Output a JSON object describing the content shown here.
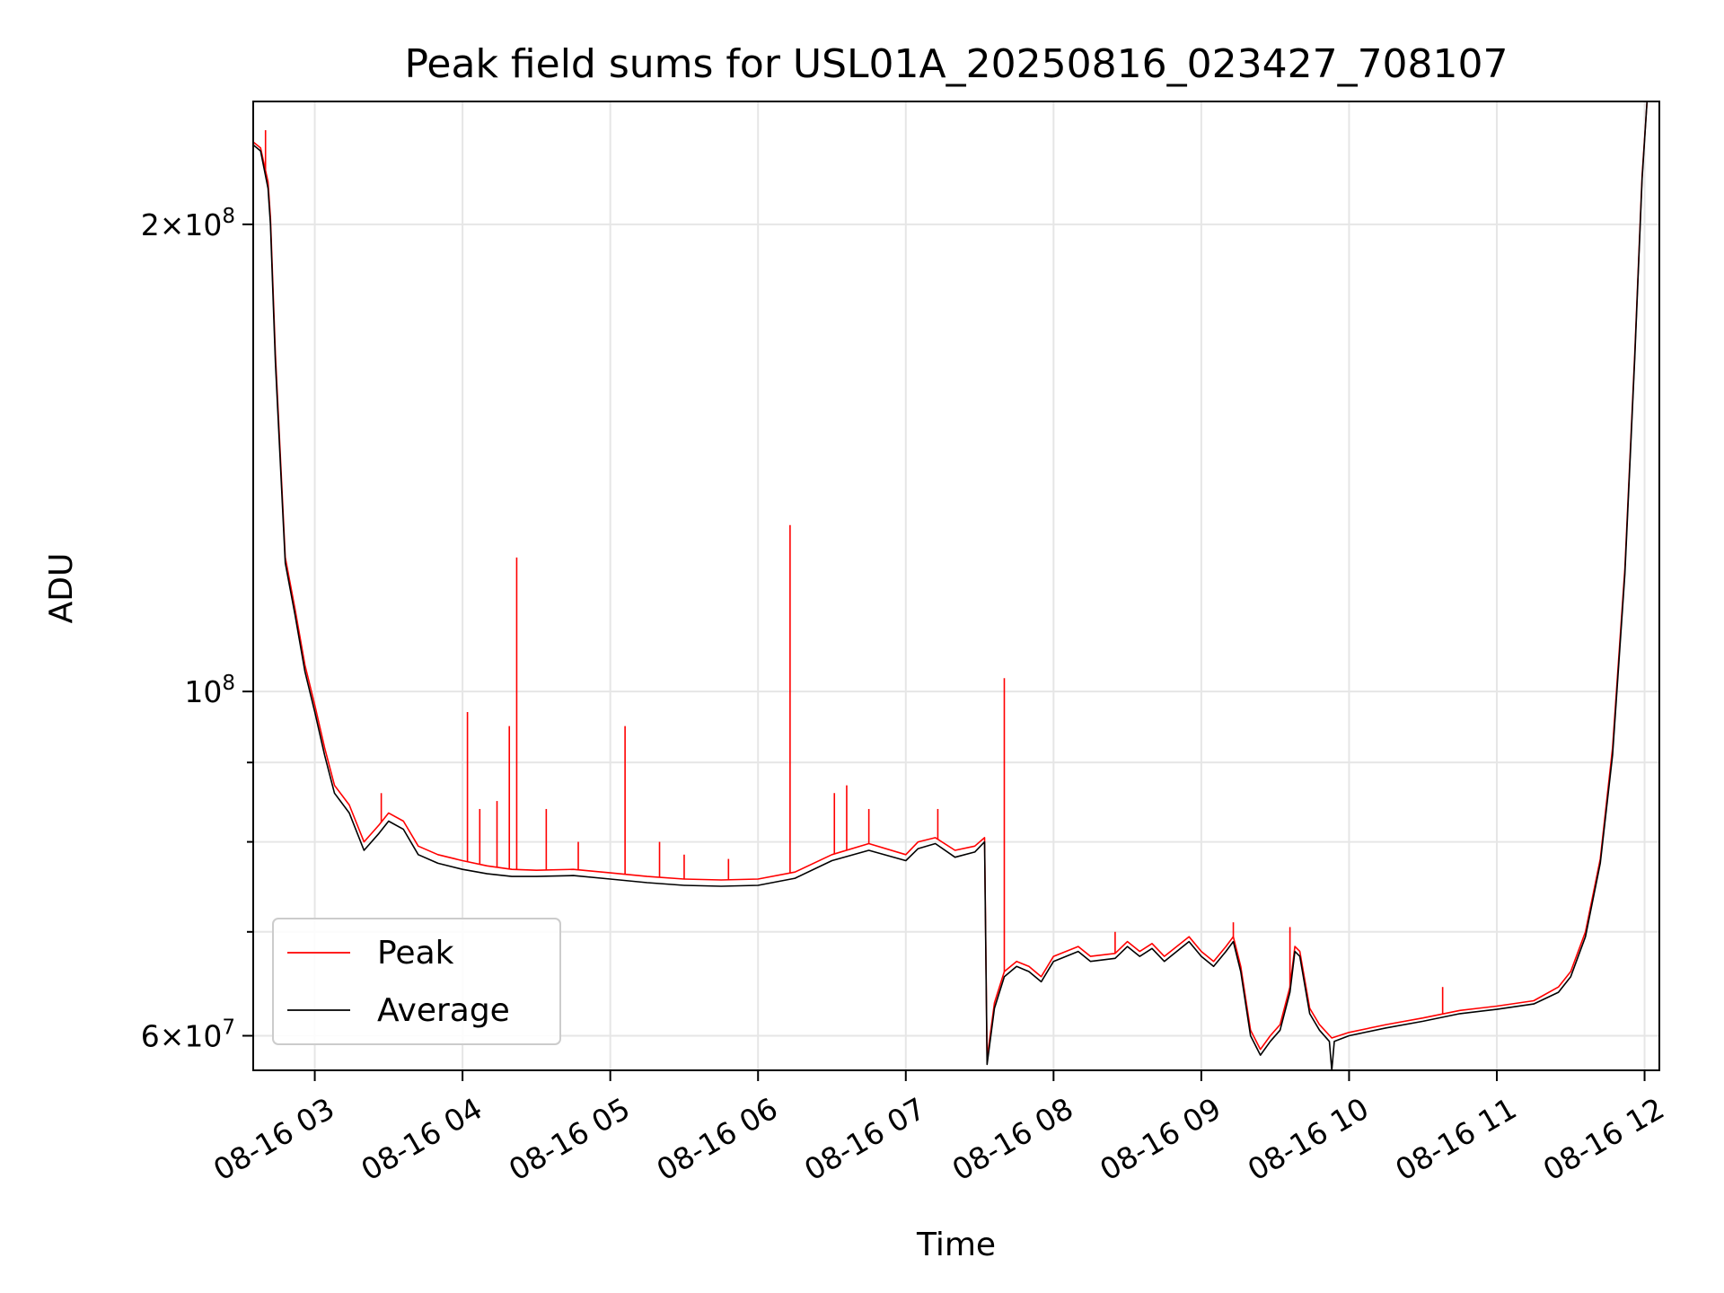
{
  "chart_data": {
    "type": "line",
    "title": "Peak field sums for USL01A_20250816_023427_708107",
    "xlabel": "Time",
    "ylabel": "ADU",
    "yscale": "log",
    "grid": true,
    "legend_position": "lower-left",
    "xlim": [
      "2025-08-16 02:35",
      "2025-08-16 12:06"
    ],
    "ylim": [
      57000000,
      240000000
    ],
    "x_ticks": [
      {
        "value": "2025-08-16 03:00",
        "label": "08-16 03"
      },
      {
        "value": "2025-08-16 04:00",
        "label": "08-16 04"
      },
      {
        "value": "2025-08-16 05:00",
        "label": "08-16 05"
      },
      {
        "value": "2025-08-16 06:00",
        "label": "08-16 06"
      },
      {
        "value": "2025-08-16 07:00",
        "label": "08-16 07"
      },
      {
        "value": "2025-08-16 08:00",
        "label": "08-16 08"
      },
      {
        "value": "2025-08-16 09:00",
        "label": "08-16 09"
      },
      {
        "value": "2025-08-16 10:00",
        "label": "08-16 10"
      },
      {
        "value": "2025-08-16 11:00",
        "label": "08-16 11"
      },
      {
        "value": "2025-08-16 12:00",
        "label": "08-16 12"
      }
    ],
    "y_major_ticks": [
      {
        "value": 60000000,
        "mantissa": "6",
        "exponent": "7"
      },
      {
        "value": 100000000,
        "mantissa": "",
        "exponent": "8"
      },
      {
        "value": 200000000,
        "mantissa": "2",
        "exponent": "8"
      }
    ],
    "y_minor_ticks": [
      70000000,
      80000000,
      90000000
    ],
    "series": [
      {
        "name": "Peak",
        "color": "#ff0000",
        "points": [
          [
            "2025-08-16 02:35",
            226000000
          ],
          [
            "2025-08-16 02:38",
            224000000
          ],
          [
            "2025-08-16 02:41",
            213000000
          ],
          [
            "2025-08-16 02:42",
            202000000
          ],
          [
            "2025-08-16 02:44",
            165000000
          ],
          [
            "2025-08-16 02:48",
            122000000
          ],
          [
            "2025-08-16 02:52",
            113000000
          ],
          [
            "2025-08-16 02:56",
            104000000
          ],
          [
            "2025-08-16 03:00",
            98000000
          ],
          [
            "2025-08-16 03:04",
            92000000
          ],
          [
            "2025-08-16 03:08",
            87000000
          ],
          [
            "2025-08-16 03:14",
            84500000
          ],
          [
            "2025-08-16 03:20",
            80000000
          ],
          [
            "2025-08-16 03:26",
            82000000
          ],
          [
            "2025-08-16 03:30",
            83500000
          ],
          [
            "2025-08-16 03:36",
            82500000
          ],
          [
            "2025-08-16 03:42",
            79500000
          ],
          [
            "2025-08-16 03:50",
            78500000
          ],
          [
            "2025-08-16 04:00",
            77800000
          ],
          [
            "2025-08-16 04:10",
            77200000
          ],
          [
            "2025-08-16 04:20",
            76800000
          ],
          [
            "2025-08-16 04:30",
            76700000
          ],
          [
            "2025-08-16 04:45",
            76800000
          ],
          [
            "2025-08-16 05:00",
            76400000
          ],
          [
            "2025-08-16 05:15",
            76000000
          ],
          [
            "2025-08-16 05:30",
            75700000
          ],
          [
            "2025-08-16 05:45",
            75600000
          ],
          [
            "2025-08-16 06:00",
            75700000
          ],
          [
            "2025-08-16 06:15",
            76500000
          ],
          [
            "2025-08-16 06:30",
            78500000
          ],
          [
            "2025-08-16 06:45",
            79800000
          ],
          [
            "2025-08-16 07:00",
            78500000
          ],
          [
            "2025-08-16 07:05",
            80000000
          ],
          [
            "2025-08-16 07:12",
            80500000
          ],
          [
            "2025-08-16 07:20",
            79000000
          ],
          [
            "2025-08-16 07:28",
            79500000
          ],
          [
            "2025-08-16 07:32",
            80500000
          ],
          [
            "2025-08-16 07:33",
            58000000
          ],
          [
            "2025-08-16 07:36",
            63000000
          ],
          [
            "2025-08-16 07:40",
            66000000
          ],
          [
            "2025-08-16 07:45",
            67000000
          ],
          [
            "2025-08-16 07:50",
            66500000
          ],
          [
            "2025-08-16 07:55",
            65500000
          ],
          [
            "2025-08-16 08:00",
            67500000
          ],
          [
            "2025-08-16 08:10",
            68500000
          ],
          [
            "2025-08-16 08:15",
            67500000
          ],
          [
            "2025-08-16 08:25",
            67800000
          ],
          [
            "2025-08-16 08:30",
            69000000
          ],
          [
            "2025-08-16 08:35",
            68000000
          ],
          [
            "2025-08-16 08:40",
            68800000
          ],
          [
            "2025-08-16 08:45",
            67500000
          ],
          [
            "2025-08-16 08:50",
            68500000
          ],
          [
            "2025-08-16 08:55",
            69500000
          ],
          [
            "2025-08-16 09:00",
            68000000
          ],
          [
            "2025-08-16 09:05",
            67000000
          ],
          [
            "2025-08-16 09:10",
            68500000
          ],
          [
            "2025-08-16 09:13",
            69500000
          ],
          [
            "2025-08-16 09:16",
            66500000
          ],
          [
            "2025-08-16 09:20",
            60500000
          ],
          [
            "2025-08-16 09:24",
            58800000
          ],
          [
            "2025-08-16 09:28",
            60000000
          ],
          [
            "2025-08-16 09:32",
            61000000
          ],
          [
            "2025-08-16 09:36",
            64500000
          ],
          [
            "2025-08-16 09:38",
            68500000
          ],
          [
            "2025-08-16 09:40",
            68000000
          ],
          [
            "2025-08-16 09:44",
            62500000
          ],
          [
            "2025-08-16 09:48",
            61000000
          ],
          [
            "2025-08-16 09:53",
            59800000
          ],
          [
            "2025-08-16 10:00",
            60300000
          ],
          [
            "2025-08-16 10:15",
            61000000
          ],
          [
            "2025-08-16 10:30",
            61600000
          ],
          [
            "2025-08-16 10:45",
            62300000
          ],
          [
            "2025-08-16 11:00",
            62700000
          ],
          [
            "2025-08-16 11:15",
            63200000
          ],
          [
            "2025-08-16 11:25",
            64500000
          ],
          [
            "2025-08-16 11:30",
            66000000
          ],
          [
            "2025-08-16 11:36",
            70000000
          ],
          [
            "2025-08-16 11:42",
            78000000
          ],
          [
            "2025-08-16 11:47",
            92000000
          ],
          [
            "2025-08-16 11:52",
            120000000
          ],
          [
            "2025-08-16 11:56",
            165000000
          ],
          [
            "2025-08-16 11:59",
            215000000
          ],
          [
            "2025-08-16 12:01",
            240000000
          ]
        ],
        "spikes": [
          [
            "2025-08-16 02:40",
            230000000
          ],
          [
            "2025-08-16 03:27",
            86000000
          ],
          [
            "2025-08-16 04:02",
            97000000
          ],
          [
            "2025-08-16 04:07",
            84000000
          ],
          [
            "2025-08-16 04:14",
            85000000
          ],
          [
            "2025-08-16 04:19",
            95000000
          ],
          [
            "2025-08-16 04:22",
            122000000
          ],
          [
            "2025-08-16 04:34",
            84000000
          ],
          [
            "2025-08-16 04:47",
            80000000
          ],
          [
            "2025-08-16 05:06",
            95000000
          ],
          [
            "2025-08-16 05:20",
            80000000
          ],
          [
            "2025-08-16 05:30",
            78500000
          ],
          [
            "2025-08-16 05:48",
            78000000
          ],
          [
            "2025-08-16 06:13",
            128000000
          ],
          [
            "2025-08-16 06:31",
            86000000
          ],
          [
            "2025-08-16 06:36",
            87000000
          ],
          [
            "2025-08-16 06:45",
            84000000
          ],
          [
            "2025-08-16 07:13",
            84000000
          ],
          [
            "2025-08-16 07:40",
            102000000
          ],
          [
            "2025-08-16 08:25",
            70000000
          ],
          [
            "2025-08-16 09:13",
            71000000
          ],
          [
            "2025-08-16 09:36",
            70500000
          ],
          [
            "2025-08-16 10:38",
            64500000
          ]
        ]
      },
      {
        "name": "Average",
        "color": "#000000",
        "points": [
          [
            "2025-08-16 02:35",
            225000000
          ],
          [
            "2025-08-16 02:38",
            223000000
          ],
          [
            "2025-08-16 02:41",
            211000000
          ],
          [
            "2025-08-16 02:42",
            200000000
          ],
          [
            "2025-08-16 02:44",
            163000000
          ],
          [
            "2025-08-16 02:48",
            121000000
          ],
          [
            "2025-08-16 02:52",
            112000000
          ],
          [
            "2025-08-16 02:56",
            103000000
          ],
          [
            "2025-08-16 03:00",
            97000000
          ],
          [
            "2025-08-16 03:04",
            91000000
          ],
          [
            "2025-08-16 03:08",
            86000000
          ],
          [
            "2025-08-16 03:14",
            83500000
          ],
          [
            "2025-08-16 03:20",
            79000000
          ],
          [
            "2025-08-16 03:26",
            81000000
          ],
          [
            "2025-08-16 03:30",
            82500000
          ],
          [
            "2025-08-16 03:36",
            81500000
          ],
          [
            "2025-08-16 03:42",
            78500000
          ],
          [
            "2025-08-16 03:50",
            77500000
          ],
          [
            "2025-08-16 04:00",
            76800000
          ],
          [
            "2025-08-16 04:10",
            76300000
          ],
          [
            "2025-08-16 04:20",
            76000000
          ],
          [
            "2025-08-16 04:30",
            76000000
          ],
          [
            "2025-08-16 04:45",
            76100000
          ],
          [
            "2025-08-16 05:00",
            75700000
          ],
          [
            "2025-08-16 05:15",
            75300000
          ],
          [
            "2025-08-16 05:30",
            75000000
          ],
          [
            "2025-08-16 05:45",
            74900000
          ],
          [
            "2025-08-16 06:00",
            75000000
          ],
          [
            "2025-08-16 06:15",
            75800000
          ],
          [
            "2025-08-16 06:30",
            77800000
          ],
          [
            "2025-08-16 06:45",
            79000000
          ],
          [
            "2025-08-16 07:00",
            77800000
          ],
          [
            "2025-08-16 07:05",
            79200000
          ],
          [
            "2025-08-16 07:12",
            79800000
          ],
          [
            "2025-08-16 07:20",
            78200000
          ],
          [
            "2025-08-16 07:28",
            78800000
          ],
          [
            "2025-08-16 07:32",
            80000000
          ],
          [
            "2025-08-16 07:33",
            57500000
          ],
          [
            "2025-08-16 07:36",
            62500000
          ],
          [
            "2025-08-16 07:40",
            65500000
          ],
          [
            "2025-08-16 07:45",
            66500000
          ],
          [
            "2025-08-16 07:50",
            66000000
          ],
          [
            "2025-08-16 07:55",
            65000000
          ],
          [
            "2025-08-16 08:00",
            67000000
          ],
          [
            "2025-08-16 08:10",
            68000000
          ],
          [
            "2025-08-16 08:15",
            67000000
          ],
          [
            "2025-08-16 08:25",
            67300000
          ],
          [
            "2025-08-16 08:30",
            68500000
          ],
          [
            "2025-08-16 08:35",
            67500000
          ],
          [
            "2025-08-16 08:40",
            68300000
          ],
          [
            "2025-08-16 08:45",
            67000000
          ],
          [
            "2025-08-16 08:50",
            68000000
          ],
          [
            "2025-08-16 08:55",
            69000000
          ],
          [
            "2025-08-16 09:00",
            67500000
          ],
          [
            "2025-08-16 09:05",
            66500000
          ],
          [
            "2025-08-16 09:10",
            68000000
          ],
          [
            "2025-08-16 09:13",
            69000000
          ],
          [
            "2025-08-16 09:16",
            66000000
          ],
          [
            "2025-08-16 09:20",
            60000000
          ],
          [
            "2025-08-16 09:24",
            58300000
          ],
          [
            "2025-08-16 09:28",
            59500000
          ],
          [
            "2025-08-16 09:32",
            60500000
          ],
          [
            "2025-08-16 09:36",
            64000000
          ],
          [
            "2025-08-16 09:38",
            68000000
          ],
          [
            "2025-08-16 09:40",
            67500000
          ],
          [
            "2025-08-16 09:44",
            62000000
          ],
          [
            "2025-08-16 09:48",
            60500000
          ],
          [
            "2025-08-16 09:52",
            59500000
          ],
          [
            "2025-08-16 09:53",
            57000000
          ],
          [
            "2025-08-16 09:54",
            59500000
          ],
          [
            "2025-08-16 10:00",
            60000000
          ],
          [
            "2025-08-16 10:15",
            60700000
          ],
          [
            "2025-08-16 10:30",
            61300000
          ],
          [
            "2025-08-16 10:45",
            62000000
          ],
          [
            "2025-08-16 11:00",
            62400000
          ],
          [
            "2025-08-16 11:15",
            62900000
          ],
          [
            "2025-08-16 11:25",
            64000000
          ],
          [
            "2025-08-16 11:30",
            65500000
          ],
          [
            "2025-08-16 11:36",
            69500000
          ],
          [
            "2025-08-16 11:42",
            77500000
          ],
          [
            "2025-08-16 11:47",
            91000000
          ],
          [
            "2025-08-16 11:52",
            119000000
          ],
          [
            "2025-08-16 11:56",
            164000000
          ],
          [
            "2025-08-16 11:59",
            214000000
          ],
          [
            "2025-08-16 12:01",
            240000000
          ]
        ]
      }
    ]
  }
}
